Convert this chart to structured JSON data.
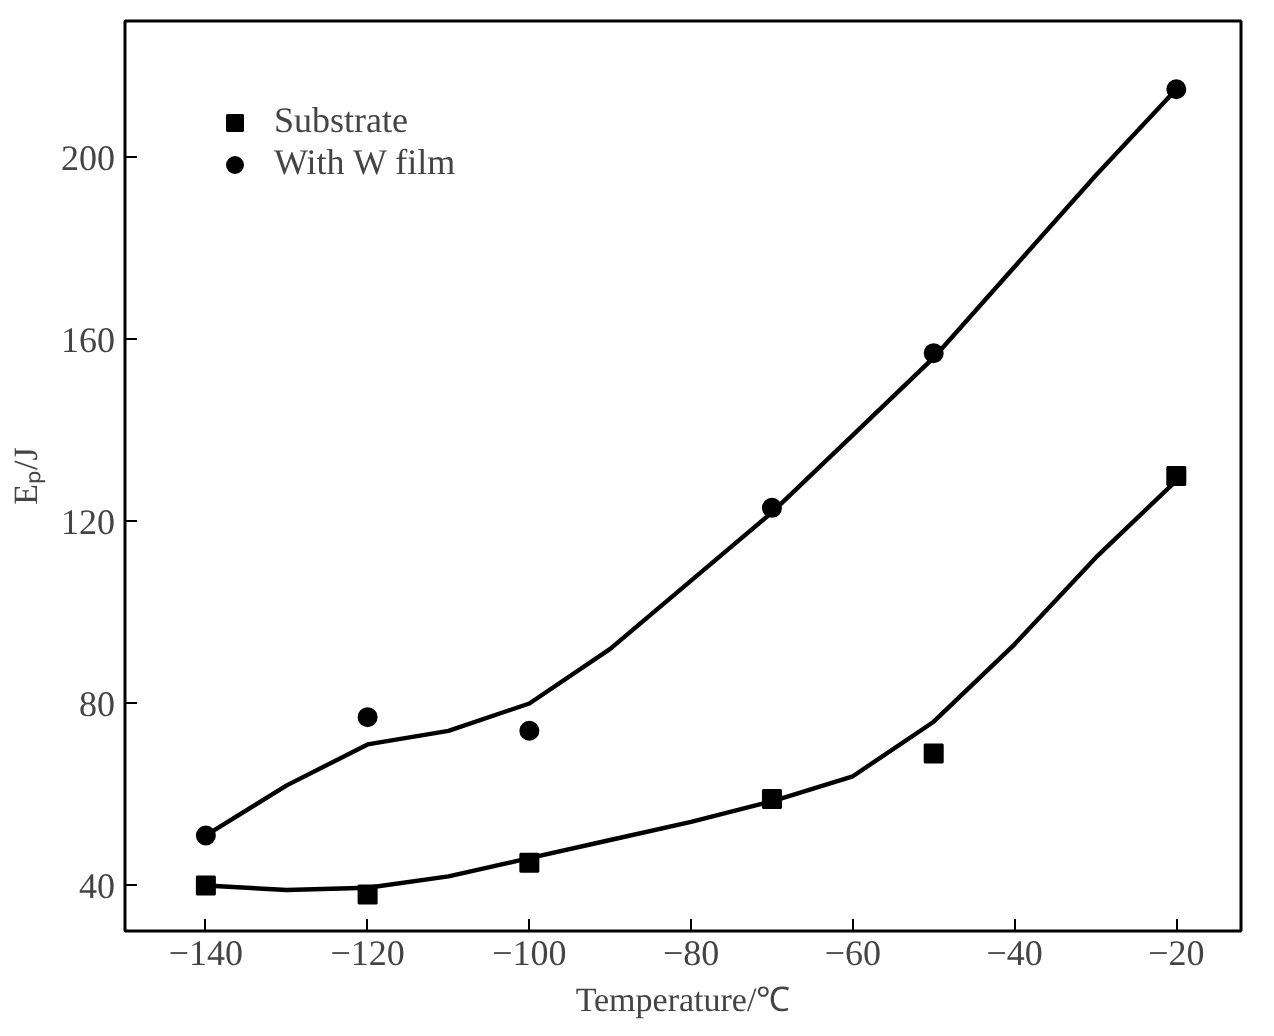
{
  "chart_data": {
    "type": "scatter",
    "xlabel": "Temperature/℃",
    "ylabel": "Eₚ/J",
    "xlim": [
      -150,
      -12
    ],
    "ylim": [
      30,
      230
    ],
    "xticks": [
      -140,
      -120,
      -100,
      -80,
      -60,
      -40,
      -20
    ],
    "yticks": [
      40,
      80,
      120,
      160,
      200
    ],
    "grid": false,
    "legend": "top left",
    "series": [
      {
        "name": "Substrate",
        "marker": "square",
        "color": "#000000",
        "x": [
          -140,
          -120,
          -100,
          -70,
          -50,
          -20
        ],
        "values": [
          40,
          38,
          45,
          59,
          69,
          130
        ]
      },
      {
        "name": "With W film",
        "marker": "circle",
        "color": "#000000",
        "x": [
          -140,
          -120,
          -100,
          -70,
          -50,
          -20
        ],
        "values": [
          51,
          77,
          74,
          123,
          157,
          215
        ]
      },
      {
        "type": "line",
        "color": "#000000",
        "line_style": "solid",
        "x": [
          -140,
          -130,
          -120,
          -110,
          -100,
          -90,
          -80,
          -70,
          -60,
          -50,
          -40,
          -30,
          -20
        ],
        "values": [
          40,
          39,
          39.5,
          42,
          46,
          50,
          54,
          58.5,
          64,
          76,
          93,
          112,
          129
        ]
      },
      {
        "type": "line",
        "color": "#000000",
        "line_style": "solid",
        "x": [
          -140,
          -130,
          -120,
          -110,
          -100,
          -90,
          -80,
          -70,
          -60,
          -50,
          -40,
          -30,
          -20
        ],
        "values": [
          51,
          62,
          71,
          74,
          80,
          92,
          107,
          122,
          139,
          156,
          176,
          196,
          215
        ]
      }
    ]
  }
}
